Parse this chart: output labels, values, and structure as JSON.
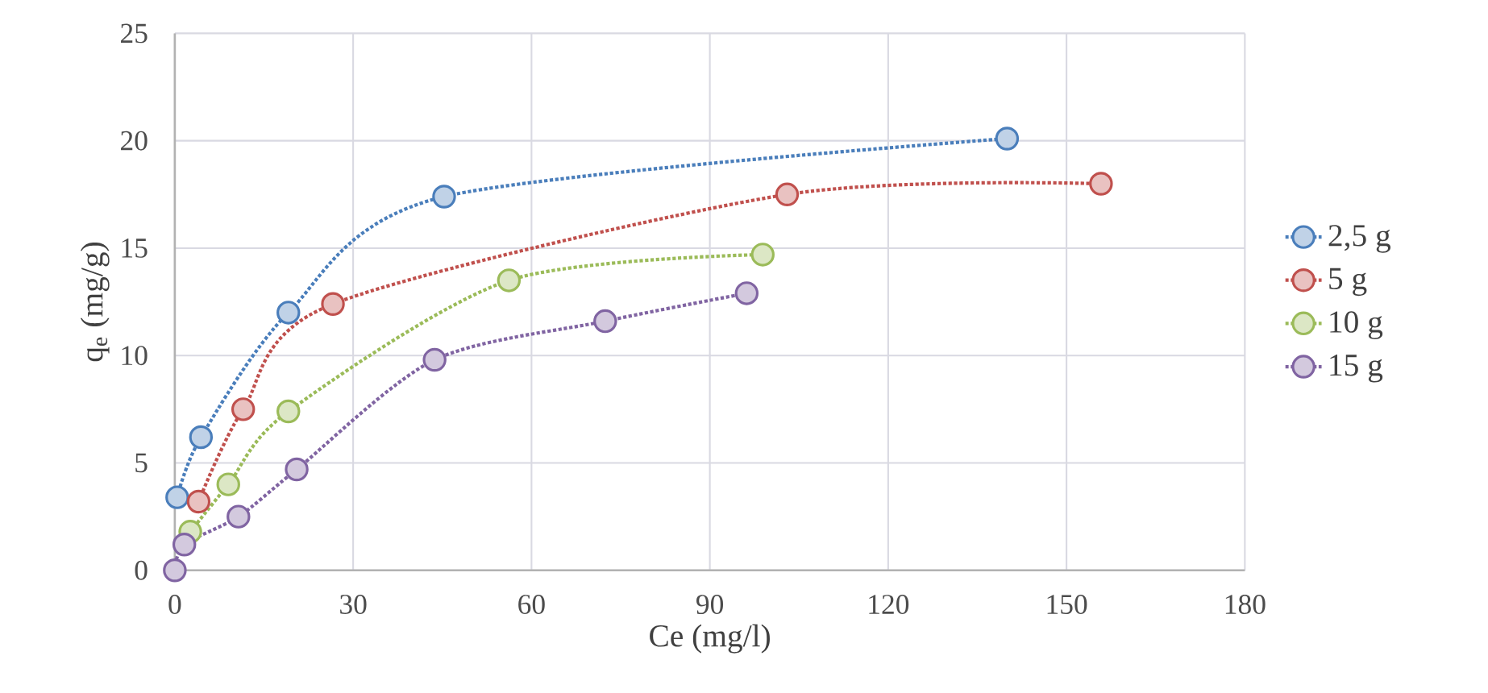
{
  "chart_data": {
    "type": "line",
    "xlabel": "Ce (mg/l)",
    "ylabel": "q$_{e}$ (mg/g)",
    "xlim": [
      0,
      180
    ],
    "xticks": [
      0,
      30,
      60,
      90,
      120,
      150,
      180
    ],
    "ylim": [
      0,
      25
    ],
    "yticks": [
      0,
      5,
      10,
      15,
      20,
      25
    ],
    "grid": true,
    "legend": "right",
    "marker": "circle",
    "line_style": "dotted",
    "series": [
      {
        "name": "2,5 g",
        "color": "#4a7ebb",
        "x": [
          0.4,
          4.4,
          19.1,
          45.3,
          140
        ],
        "values": [
          3.4,
          6.2,
          12.0,
          17.4,
          20.1
        ]
      },
      {
        "name": "5 g",
        "color": "#c0504d",
        "x": [
          4.0,
          11.5,
          26.6,
          103,
          155.8
        ],
        "values": [
          3.2,
          7.5,
          12.4,
          17.5,
          18.0
        ]
      },
      {
        "name": "10 g",
        "color": "#9bbb59",
        "x": [
          2.6,
          9.0,
          19.1,
          56.2,
          98.9
        ],
        "values": [
          1.8,
          4.0,
          7.4,
          13.5,
          14.7
        ]
      },
      {
        "name": "15 g",
        "color": "#8064a2",
        "x": [
          0,
          1.6,
          10.7,
          20.5,
          43.7,
          72.4,
          96.2
        ],
        "values": [
          0,
          1.2,
          2.5,
          4.7,
          9.8,
          11.6,
          12.9
        ]
      }
    ]
  }
}
